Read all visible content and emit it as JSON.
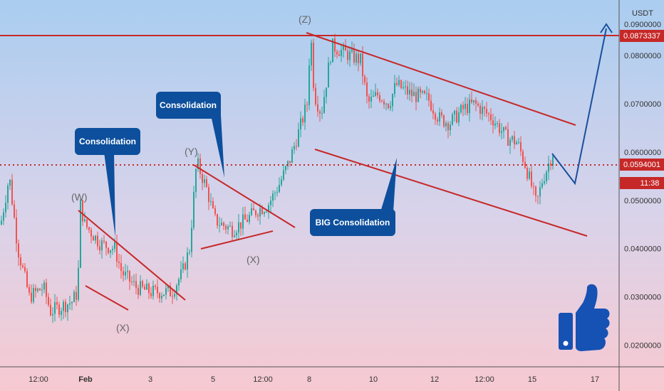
{
  "chart": {
    "price_axis_unit": "USDT",
    "top_partial_label": "0.0900000",
    "resistance_tag": "0.0873337",
    "current_price_tag": "0.0594001",
    "countdown_tag": "11:38",
    "colors": {
      "bull": "#26a69a",
      "bear": "#ef5350",
      "annotation": "#c62828",
      "callout": "#0d4f9c",
      "projection": "#1a4f9c",
      "thumb": "#1651b4"
    }
  },
  "callouts": {
    "c1": "Consolidation",
    "c2": "Consolidation",
    "c3": "BIG Consolidation"
  },
  "wave_labels": {
    "w": "(W)",
    "x1": "(X)",
    "y": "(Y)",
    "x2": "(X)",
    "z": "(Z)"
  },
  "icons": {
    "thumb": "thumbs-up-icon"
  },
  "chart_data": {
    "type": "candlestick",
    "ylabel": "USDT",
    "y_ticks": [
      "0.0200000",
      "0.0300000",
      "0.0400000",
      "0.0500000",
      "0.0600000",
      "0.0700000",
      "0.0800000"
    ],
    "x_ticks": [
      "12:00",
      "Feb",
      "3",
      "5",
      "12:00",
      "8",
      "10",
      "12",
      "12:00",
      "15",
      "17"
    ],
    "horizontal_levels": [
      {
        "value": 0.0873337,
        "style": "solid"
      },
      {
        "value": 0.0594001,
        "style": "dotted"
      }
    ],
    "ylim": [
      0.0155,
      0.0915
    ],
    "path": [
      [
        0,
        0.045
      ],
      [
        12,
        0.055
      ],
      [
        24,
        0.04
      ],
      [
        40,
        0.03
      ],
      [
        60,
        0.032
      ],
      [
        70,
        0.027
      ],
      [
        100,
        0.029
      ],
      [
        108,
        0.031
      ],
      [
        112,
        0.049
      ],
      [
        118,
        0.045
      ],
      [
        140,
        0.041
      ],
      [
        160,
        0.04
      ],
      [
        170,
        0.035
      ],
      [
        190,
        0.032
      ],
      [
        210,
        0.031
      ],
      [
        240,
        0.031
      ],
      [
        255,
        0.035
      ],
      [
        265,
        0.04
      ],
      [
        275,
        0.058
      ],
      [
        290,
        0.052
      ],
      [
        300,
        0.046
      ],
      [
        310,
        0.045
      ],
      [
        325,
        0.044
      ],
      [
        345,
        0.046
      ],
      [
        360,
        0.048
      ],
      [
        375,
        0.049
      ],
      [
        390,
        0.053
      ],
      [
        405,
        0.058
      ],
      [
        420,
        0.065
      ],
      [
        430,
        0.07
      ],
      [
        435,
        0.085
      ],
      [
        440,
        0.072
      ],
      [
        450,
        0.068
      ],
      [
        465,
        0.082
      ],
      [
        490,
        0.08
      ],
      [
        505,
        0.079
      ],
      [
        515,
        0.07
      ],
      [
        530,
        0.072
      ],
      [
        545,
        0.07
      ],
      [
        555,
        0.074
      ],
      [
        575,
        0.072
      ],
      [
        600,
        0.071
      ],
      [
        615,
        0.067
      ],
      [
        630,
        0.066
      ],
      [
        650,
        0.069
      ],
      [
        665,
        0.07
      ],
      [
        690,
        0.067
      ],
      [
        710,
        0.063
      ],
      [
        725,
        0.062
      ],
      [
        735,
        0.058
      ],
      [
        745,
        0.053
      ],
      [
        752,
        0.049
      ],
      [
        760,
        0.054
      ],
      [
        770,
        0.058
      ],
      [
        775,
        0.06
      ]
    ]
  }
}
